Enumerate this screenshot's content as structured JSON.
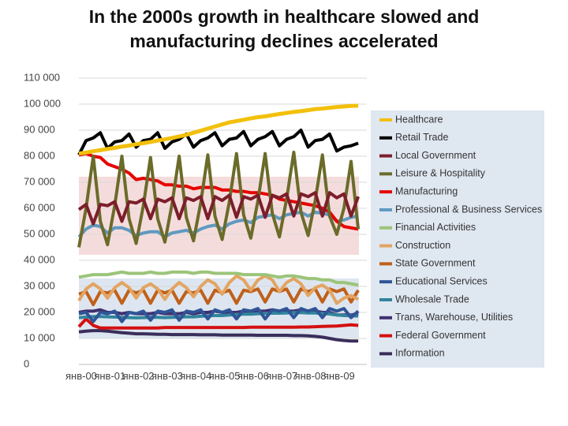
{
  "chart_data": {
    "type": "line",
    "title": "In the 2000s growth in healthcare slowed and manufacturing declines accelerated",
    "categories": [
      "янв-00",
      null,
      null,
      null,
      "янв-01",
      null,
      null,
      null,
      "янв-02",
      null,
      null,
      null,
      "янв-03",
      null,
      null,
      null,
      "янв-04",
      null,
      null,
      null,
      "янв-05",
      null,
      null,
      null,
      "янв-06",
      null,
      null,
      null,
      "янв-07",
      null,
      null,
      null,
      "янв-08",
      null,
      null,
      null,
      "янв-09",
      null,
      null,
      null
    ],
    "ylim": [
      0,
      110000
    ],
    "yticks": [
      0,
      {
        "value": 10000,
        "label": "10 000"
      },
      {
        "value": 20000,
        "label": "20 000"
      },
      {
        "value": 30000,
        "label": "30 000"
      },
      {
        "value": 40000,
        "label": "40 000"
      },
      {
        "value": 50000,
        "label": "50 000"
      },
      {
        "value": 60000,
        "label": "60 000"
      },
      {
        "value": 70000,
        "label": "70 000"
      },
      {
        "value": 80000,
        "label": "80 000"
      },
      {
        "value": 90000,
        "label": "90 000"
      },
      {
        "value": 100000,
        "label": "100 000"
      },
      {
        "value": 110000,
        "label": "110 000"
      }
    ],
    "grid": true,
    "legend": "right",
    "series": [
      {
        "name": "Healthcare",
        "color": "#f2c00c",
        "values": [
          81000,
          81400,
          81900,
          82300,
          82800,
          83200,
          83700,
          84100,
          84600,
          85000,
          85500,
          86000,
          86500,
          87000,
          87600,
          88200,
          89000,
          89800,
          90600,
          91400,
          92200,
          93000,
          93500,
          94000,
          94500,
          95000,
          95300,
          95800,
          96200,
          96600,
          97000,
          97300,
          97700,
          98100,
          98300,
          98600,
          98900,
          99100,
          99300,
          99400
        ]
      },
      {
        "name": "Retail Trade",
        "color": "#000000",
        "values": [
          80500,
          86000,
          87000,
          89000,
          83000,
          85500,
          86000,
          88500,
          83500,
          86000,
          86500,
          89000,
          83000,
          85500,
          86500,
          88500,
          83500,
          86000,
          87000,
          89000,
          84000,
          86500,
          87000,
          89500,
          84000,
          86500,
          87500,
          89500,
          84000,
          86500,
          87500,
          90000,
          83500,
          86000,
          86500,
          88500,
          82000,
          83500,
          84000,
          85000
        ]
      },
      {
        "name": "Local Government",
        "color": "#7b1f2a",
        "values": [
          59500,
          61500,
          54000,
          61500,
          61000,
          62500,
          55000,
          62500,
          62000,
          63500,
          56000,
          63500,
          62500,
          64000,
          56000,
          64000,
          63000,
          64500,
          56000,
          64500,
          63000,
          65000,
          56500,
          64500,
          63500,
          65000,
          56500,
          65000,
          64000,
          65500,
          57000,
          65500,
          64500,
          66000,
          57000,
          66000,
          64000,
          65500,
          57000,
          64500
        ]
      },
      {
        "name": "Leisure & Hospitality",
        "color": "#6b6b2a",
        "values": [
          45000,
          60000,
          80000,
          55000,
          46000,
          61000,
          80000,
          56000,
          46500,
          61000,
          79500,
          56000,
          47000,
          61500,
          80000,
          56500,
          47500,
          62000,
          80500,
          57000,
          48000,
          62500,
          81000,
          57500,
          48500,
          63000,
          81000,
          58000,
          49000,
          63500,
          81500,
          58500,
          49500,
          63000,
          80500,
          57000,
          50000,
          60000,
          78000,
          52000
        ]
      },
      {
        "name": "Manufacturing",
        "color": "#e60000",
        "values": [
          80500,
          81000,
          80000,
          79500,
          77000,
          76000,
          75000,
          73500,
          71000,
          71500,
          71000,
          70500,
          69000,
          69000,
          68500,
          68500,
          67500,
          68000,
          68000,
          68000,
          67000,
          67000,
          66500,
          66500,
          66000,
          66000,
          65500,
          65000,
          63500,
          63000,
          62500,
          62000,
          61500,
          61000,
          60000,
          58500,
          55000,
          53000,
          52500,
          52000
        ]
      },
      {
        "name": "Professional & Business Services",
        "color": "#5f9ac0",
        "values": [
          49000,
          52000,
          53500,
          53000,
          50500,
          52500,
          52500,
          51500,
          49500,
          50500,
          51000,
          51000,
          49000,
          50500,
          51000,
          51500,
          50500,
          52000,
          53000,
          53500,
          52000,
          54000,
          55000,
          55500,
          54500,
          56500,
          57000,
          57500,
          56000,
          57500,
          58000,
          58500,
          57000,
          58500,
          58000,
          57500,
          55000,
          55500,
          56500,
          57000
        ]
      },
      {
        "name": "Financial Activities",
        "color": "#9cc47a",
        "values": [
          33500,
          34000,
          34500,
          34500,
          34500,
          35000,
          35500,
          35000,
          35000,
          35000,
          35500,
          35000,
          35000,
          35500,
          35500,
          35500,
          35000,
          35500,
          35500,
          35000,
          35000,
          35000,
          35000,
          34500,
          34500,
          34500,
          34500,
          34000,
          33500,
          34000,
          34000,
          33500,
          33000,
          33000,
          32500,
          32500,
          31500,
          31500,
          31000,
          30500
        ]
      },
      {
        "name": "Construction",
        "color": "#e3a462",
        "values": [
          24500,
          29000,
          31000,
          29000,
          25500,
          29500,
          31500,
          29500,
          25500,
          29500,
          31000,
          29000,
          25000,
          29000,
          31500,
          29500,
          26000,
          30000,
          32500,
          31000,
          27000,
          31500,
          34000,
          32500,
          28500,
          32500,
          34000,
          32500,
          28000,
          31500,
          33000,
          31000,
          26500,
          29500,
          30500,
          28500,
          23500,
          25500,
          26500,
          25000
        ]
      },
      {
        "name": "State Government",
        "color": "#c0601a",
        "values": [
          27000,
          28000,
          23000,
          28000,
          27500,
          28500,
          23500,
          28500,
          27500,
          28500,
          23500,
          28500,
          27500,
          28500,
          23500,
          28000,
          27500,
          28500,
          23500,
          28500,
          27500,
          28500,
          23500,
          28500,
          28000,
          29000,
          24000,
          29000,
          28000,
          29000,
          24000,
          29000,
          28000,
          29000,
          24000,
          29000,
          28000,
          29000,
          24000,
          28500
        ]
      },
      {
        "name": "Educational Services",
        "color": "#2f5597",
        "values": [
          19500,
          20000,
          16500,
          20000,
          19500,
          20500,
          16500,
          20000,
          19500,
          20500,
          17000,
          20500,
          20000,
          21000,
          17000,
          20500,
          20000,
          21000,
          17500,
          21000,
          20000,
          21000,
          17500,
          21000,
          20500,
          21500,
          17500,
          21000,
          20500,
          21500,
          18000,
          21500,
          20500,
          21500,
          18000,
          21500,
          20500,
          21500,
          18000,
          20500
        ]
      },
      {
        "name": "Wholesale Trade",
        "color": "#31859c",
        "values": [
          18000,
          18200,
          18400,
          18400,
          18300,
          18200,
          18100,
          18000,
          17900,
          18000,
          18100,
          18100,
          18000,
          18100,
          18200,
          18300,
          18300,
          18500,
          18700,
          18800,
          18800,
          19000,
          19200,
          19300,
          19300,
          19500,
          19600,
          19700,
          19700,
          19800,
          19900,
          19900,
          19800,
          19800,
          19600,
          19400,
          19000,
          18800,
          18700,
          18600
        ]
      },
      {
        "name": "Trans, Warehouse, Utilities",
        "color": "#403070",
        "values": [
          20000,
          20500,
          20500,
          21000,
          20000,
          20000,
          19500,
          20000,
          19500,
          19500,
          19500,
          20000,
          19500,
          19500,
          19500,
          20000,
          19500,
          20000,
          20000,
          20500,
          20000,
          20000,
          20000,
          20500,
          20000,
          20500,
          20500,
          21000,
          20500,
          20500,
          20500,
          21000,
          20500,
          20500,
          20000,
          20000,
          19000,
          19000,
          19000,
          19500
        ]
      },
      {
        "name": "Federal Government",
        "color": "#d41010",
        "values": [
          14500,
          17500,
          15000,
          14000,
          14000,
          14000,
          14000,
          14000,
          14000,
          14000,
          14000,
          14000,
          14200,
          14200,
          14200,
          14200,
          14200,
          14200,
          14200,
          14200,
          14200,
          14200,
          14200,
          14200,
          14300,
          14300,
          14300,
          14300,
          14300,
          14300,
          14300,
          14400,
          14400,
          14500,
          14600,
          14700,
          14800,
          15000,
          15200,
          15000
        ]
      },
      {
        "name": "Information",
        "color": "#3a2e5a",
        "values": [
          12500,
          12800,
          13000,
          13000,
          12800,
          12500,
          12200,
          12000,
          11800,
          11800,
          11700,
          11600,
          11600,
          11500,
          11500,
          11500,
          11500,
          11400,
          11400,
          11400,
          11300,
          11300,
          11300,
          11300,
          11300,
          11200,
          11200,
          11200,
          11200,
          11200,
          11100,
          11100,
          11000,
          10800,
          10500,
          10000,
          9500,
          9200,
          9000,
          9000
        ]
      }
    ]
  }
}
